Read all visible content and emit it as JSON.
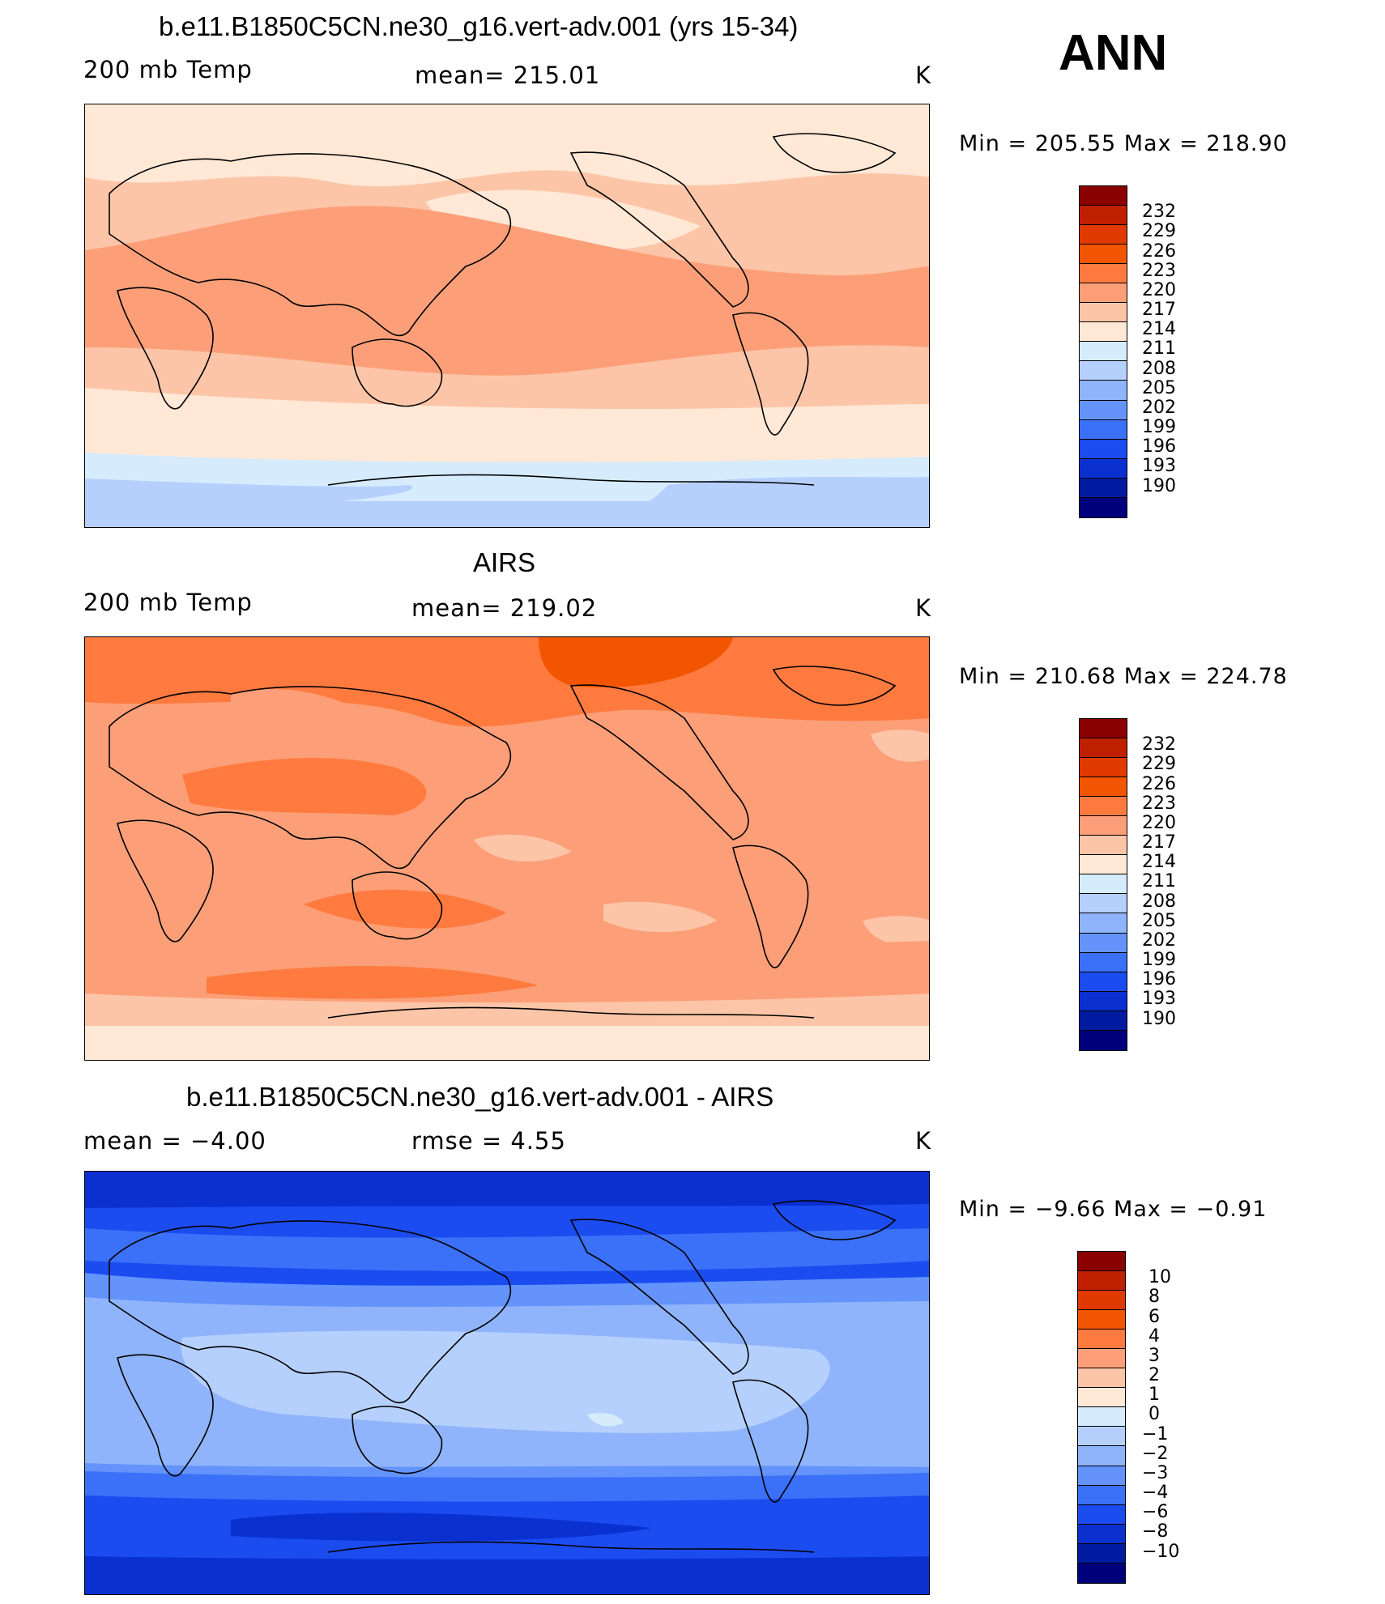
{
  "season": "ANN",
  "colors": {
    "temp_scale": [
      "#8b0000",
      "#c02000",
      "#e03a00",
      "#f25500",
      "#ff7a3f",
      "#fc9f78",
      "#fdc5a8",
      "#ffe8d6",
      "#d6ecfd",
      "#b5d0fd",
      "#8fb4fb",
      "#6393fb",
      "#3b70f8",
      "#1b4cf0",
      "#0a30d0",
      "#001aa0",
      "#00007d"
    ],
    "diff_scale": [
      "#8b0000",
      "#c02000",
      "#e03a00",
      "#f25500",
      "#ff7a3f",
      "#fc9f78",
      "#fdc5a8",
      "#ffe8d6",
      "#d6ecfd",
      "#b5d0fd",
      "#8fb4fb",
      "#6393fb",
      "#3b70f8",
      "#1b4cf0",
      "#0a30d0",
      "#001aa0",
      "#00007d"
    ]
  },
  "panels": [
    {
      "title": "b.e11.B1850C5CN.ne30_g16.vert-adv.001 (yrs 15-34)",
      "left_label": "200 mb Temp",
      "center_label": "mean=  215.01",
      "right_label": "K",
      "minmax": "Min  =  205.55  Max  =  218.90",
      "levels": [
        "232",
        "229",
        "226",
        "223",
        "220",
        "217",
        "214",
        "211",
        "208",
        "205",
        "202",
        "199",
        "196",
        "193",
        "190"
      ]
    },
    {
      "title": "AIRS",
      "left_label": "200 mb Temp",
      "center_label": "mean=  219.02",
      "right_label": "K",
      "minmax": "Min  =  210.68  Max  =  224.78",
      "levels": [
        "232",
        "229",
        "226",
        "223",
        "220",
        "217",
        "214",
        "211",
        "208",
        "205",
        "202",
        "199",
        "196",
        "193",
        "190"
      ]
    },
    {
      "title": "b.e11.B1850C5CN.ne30_g16.vert-adv.001 - AIRS",
      "left_label": "mean  =    −4.00",
      "center_label": "rmse  =     4.55",
      "right_label": "K",
      "minmax": "Min  =    −9.66  Max  =    −0.91",
      "levels": [
        "10",
        "8",
        "6",
        "4",
        "3",
        "2",
        "1",
        "0",
        "−1",
        "−2",
        "−3",
        "−4",
        "−6",
        "−8",
        "−10"
      ]
    }
  ]
}
